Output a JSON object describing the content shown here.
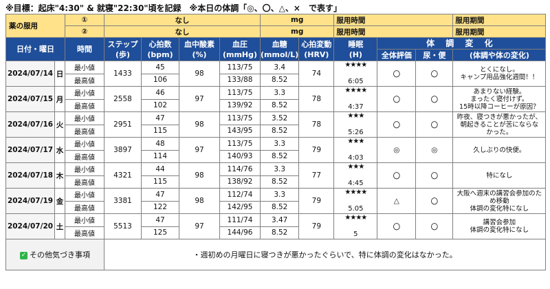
{
  "headline": "※目標：起床\"4:30\" & 就寝\"22:30\"頃を記録　※本日の体調「◎、〇、△、×　で表す」",
  "medication": {
    "label": "薬の服用",
    "rows": [
      {
        "no": "①",
        "name": "なし",
        "unit": "mg",
        "time_label": "服用時間",
        "period_label": "服用期間"
      },
      {
        "no": "②",
        "name": "なし",
        "unit": "mg",
        "time_label": "服用時間",
        "period_label": "服用期間"
      }
    ]
  },
  "header": {
    "date": "日付・曜日",
    "time": "時間",
    "steps": [
      "ステップ",
      "(歩)"
    ],
    "hr": [
      "心拍数",
      "(bpm)"
    ],
    "spo2": [
      "血中酸素",
      "(%)"
    ],
    "bp": [
      "血圧",
      "(mmHg)"
    ],
    "glucose": [
      "血糖",
      "(mmol/L)"
    ],
    "hrv": [
      "心拍変動",
      "(HRV)"
    ],
    "sleep": [
      "睡眠",
      "(H)"
    ],
    "condition": "体 調 変 化",
    "overall": "全体評価",
    "toilet": "尿・便",
    "memo": "(体調や体の変化)"
  },
  "row_labels": {
    "min": "最小値",
    "max": "最高値"
  },
  "days": [
    {
      "date": "2024/07/14",
      "weekday": "日",
      "steps": "1433",
      "hr_min": "45",
      "hr_max": "106",
      "spo2": "98",
      "bp_min": "113/75",
      "bp_max": "133/88",
      "glu_min": "3.4",
      "glu_max": "8.52",
      "hrv": "74",
      "stars": "★★★★",
      "sleep": "6:05",
      "overall": "〇",
      "toilet": "〇",
      "memo": "とくになし。\nキャンプ用品強化週間！！"
    },
    {
      "date": "2024/07/15",
      "weekday": "月",
      "steps": "2558",
      "hr_min": "46",
      "hr_max": "102",
      "spo2": "97",
      "bp_min": "113/75",
      "bp_max": "139/92",
      "glu_min": "3.3",
      "glu_max": "8.52",
      "hrv": "78",
      "stars": "★★★★",
      "sleep": "4:37",
      "overall": "〇",
      "toilet": "〇",
      "memo": "あまりない経験。\nまったく寝付けず。\n15時以降コーヒーが原因？"
    },
    {
      "date": "2024/07/16",
      "weekday": "火",
      "steps": "2951",
      "hr_min": "47",
      "hr_max": "115",
      "spo2": "98",
      "bp_min": "113/75",
      "bp_max": "143/95",
      "glu_min": "3.52",
      "glu_max": "8.52",
      "hrv": "78",
      "stars": "★★★",
      "sleep": "5:26",
      "overall": "〇",
      "toilet": "〇",
      "memo": "昨夜、寝つきが悪かったが、\n朝起きることが苦にならな\nかった。"
    },
    {
      "date": "2024/07/17",
      "weekday": "水",
      "steps": "3897",
      "hr_min": "48",
      "hr_max": "114",
      "spo2": "97",
      "bp_min": "113/75",
      "bp_max": "140/93",
      "glu_min": "3.3",
      "glu_max": "8.52",
      "hrv": "79",
      "stars": "★★★",
      "sleep": "4:03",
      "overall": "◎",
      "toilet": "◎",
      "memo": "久しぶりの快便。"
    },
    {
      "date": "2024/07/18",
      "weekday": "木",
      "steps": "4321",
      "hr_min": "44",
      "hr_max": "115",
      "spo2": "98",
      "bp_min": "114/76",
      "bp_max": "138/92",
      "glu_min": "3.3",
      "glu_max": "8.52",
      "hrv": "77",
      "stars": "★★★",
      "sleep": "4:45",
      "overall": "〇",
      "toilet": "〇",
      "memo": "特になし"
    },
    {
      "date": "2024/07/19",
      "weekday": "金",
      "steps": "3381",
      "hr_min": "47",
      "hr_max": "122",
      "spo2": "98",
      "bp_min": "112/74",
      "bp_max": "142/95",
      "glu_min": "3.3",
      "glu_max": "8.52",
      "hrv": "79",
      "stars": "★★★★",
      "sleep": "5.05",
      "overall": "△",
      "toilet": "〇",
      "memo": "大阪へ週末の講習会参加のた\nめ移動\n体調の変化特になし"
    },
    {
      "date": "2024/07/20",
      "weekday": "土",
      "steps": "5513",
      "hr_min": "47",
      "hr_max": "125",
      "spo2": "97",
      "bp_min": "111/74",
      "bp_max": "144/96",
      "glu_min": "3.47",
      "glu_max": "8.52",
      "hrv": "79",
      "stars": "★★★★",
      "sleep": "5",
      "overall": "〇",
      "toilet": "〇",
      "memo": "講習会参加\n体調の変化特になし"
    }
  ],
  "footer": {
    "label": "その他気づき事項",
    "note": "・週初めの月曜日に寝つきが悪かったぐらいで、特に体調の変化はなかった。",
    "icon": "check-icon",
    "icon_color": "#2fb34a"
  }
}
